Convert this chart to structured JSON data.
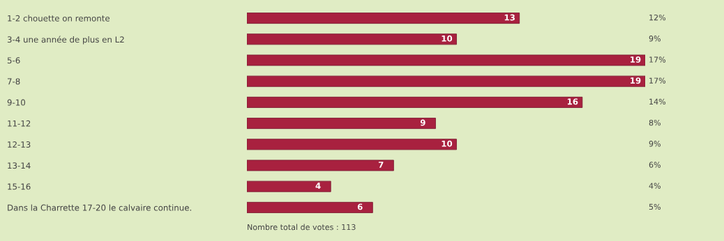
{
  "chart_data": {
    "type": "bar",
    "orientation": "horizontal",
    "categories": [
      "1-2 chouette on remonte",
      "3-4 une année de plus en L2",
      "5-6",
      "7-8",
      "9-10",
      "11-12",
      "12-13",
      "13-14",
      "15-16",
      "Dans la Charrette 17-20 le calvaire continue."
    ],
    "values": [
      13,
      10,
      19,
      19,
      16,
      9,
      10,
      7,
      4,
      6
    ],
    "color": "#a8213f",
    "xlim": [
      0,
      19
    ],
    "data_labels": true,
    "grid": false,
    "legend": false,
    "annotations": [
      "12%",
      "9%",
      "17%",
      "17%",
      "14%",
      "8%",
      "9%",
      "6%",
      "4%",
      "5%",
      "Nombre total de votes : 113"
    ]
  }
}
